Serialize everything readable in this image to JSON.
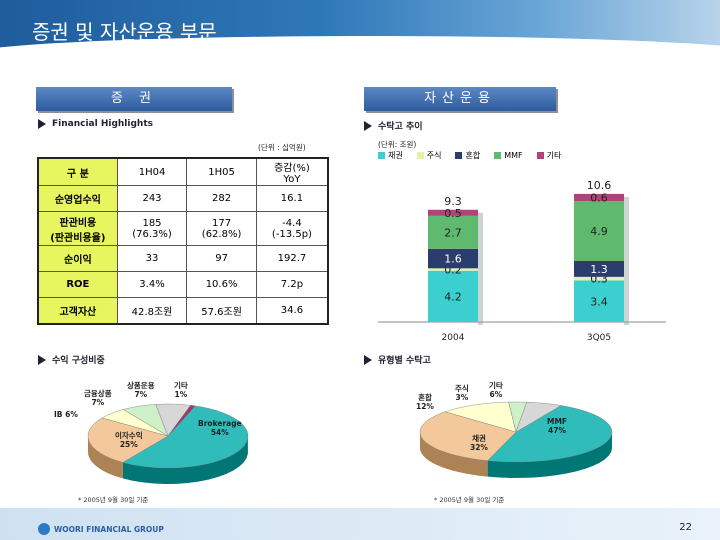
{
  "header": {
    "title": "증권 및 자산운용 부문"
  },
  "left": {
    "section_label": "증    권",
    "financial_title": "Financial Highlights",
    "unit": "(단위 : 십억원)",
    "table": {
      "columns": [
        "구 분",
        "1H04",
        "1H05",
        "증감(%) YoY"
      ],
      "rows": [
        [
          "순영업수익",
          "243",
          "282",
          "16.1"
        ],
        [
          "판관비용\n(판관비용율)",
          "185\n(76.3%)",
          "177\n(62.8%)",
          "-4.4\n(-13.5p)"
        ],
        [
          "순이익",
          "33",
          "97",
          "192.7"
        ],
        [
          "ROE",
          "3.4%",
          "10.6%",
          "7.2p"
        ],
        [
          "고객자산",
          "42.8조원",
          "57.6조원",
          "34.6"
        ]
      ]
    },
    "pie_title": "수익 구성비중",
    "pie_labels": {
      "financial_products": "금융상품",
      "financial_products_pct": "7%",
      "product_mgmt": "상품운용",
      "product_mgmt_pct": "7%",
      "other": "기타",
      "other_pct": "1%",
      "ib": "IB 6%",
      "brokerage": "Brokerage",
      "brokerage_pct": "54%",
      "interest": "이자수익",
      "interest_pct": "25%"
    },
    "note": "* 2005년 9월 30일 기준"
  },
  "right": {
    "section_label": "자산운용",
    "bar_title": "수탁고 추이",
    "unit": "(단위: 조원)",
    "pie_title": "유형별 수탁고",
    "pie_labels": {
      "mixed": "혼합",
      "mixed_pct": "12%",
      "stock": "주식",
      "stock_pct": "3%",
      "other": "기타",
      "other_pct": "6%",
      "mmf": "MMF",
      "mmf_pct": "47%",
      "bond": "채권",
      "bond_pct": "32%"
    },
    "note": "* 2005년 9월 30일 기준"
  },
  "chart_data": [
    {
      "type": "bar",
      "stacked": true,
      "title": "수탁고 추이",
      "categories": [
        "2004",
        "3Q05"
      ],
      "totals": [
        "9.3",
        "10.6"
      ],
      "series": [
        {
          "name": "채권",
          "color": "#3ccfd0",
          "values": [
            4.2,
            3.4
          ],
          "labels": [
            "4.2",
            "3.4"
          ]
        },
        {
          "name": "주식",
          "color": "#e5f3a8",
          "values": [
            0.2,
            0.3
          ],
          "labels": [
            "0.2",
            "0.3"
          ]
        },
        {
          "name": "혼합",
          "color": "#2b3d6c",
          "values": [
            1.6,
            1.3
          ],
          "labels": [
            "1.6",
            "1.3"
          ]
        },
        {
          "name": "MMF",
          "color": "#5fb96e",
          "values": [
            2.7,
            4.9
          ],
          "labels": [
            "2.7",
            "4.9"
          ]
        },
        {
          "name": "기타",
          "color": "#b3427a",
          "values": [
            0.5,
            0.6
          ],
          "labels": [
            "0.5",
            "0.6"
          ]
        }
      ],
      "legend": "top"
    },
    {
      "type": "pie",
      "title": "수익 구성비중",
      "slices": [
        {
          "name": "Brokerage",
          "value": 54,
          "color": "#2fbcbb"
        },
        {
          "name": "이자수익",
          "value": 25,
          "color": "#f3c89a"
        },
        {
          "name": "IB",
          "value": 6,
          "color": "#ffffcf"
        },
        {
          "name": "금융상품",
          "value": 7,
          "color": "#cdf0c7"
        },
        {
          "name": "상품운용",
          "value": 7,
          "color": "#d7d7d7"
        },
        {
          "name": "기타",
          "value": 1,
          "color": "#a0366b"
        }
      ]
    },
    {
      "type": "pie",
      "title": "유형별 수탁고",
      "slices": [
        {
          "name": "MMF",
          "value": 47,
          "color": "#2fbcbb"
        },
        {
          "name": "채권",
          "value": 32,
          "color": "#f3c89a"
        },
        {
          "name": "혼합",
          "value": 12,
          "color": "#ffffcf"
        },
        {
          "name": "주식",
          "value": 3,
          "color": "#cdf0c7"
        },
        {
          "name": "기타",
          "value": 6,
          "color": "#d7d7d7"
        }
      ]
    }
  ],
  "footer": {
    "logo_text": "WOORI FINANCIAL GROUP",
    "page": "22"
  }
}
